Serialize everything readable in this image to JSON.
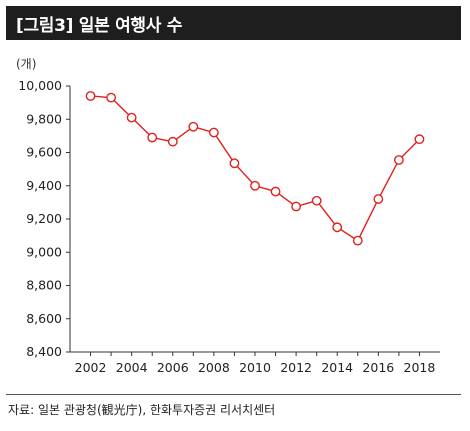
{
  "header": {
    "title": "[그림3]  일본 여행사 수"
  },
  "source": "자료: 일본 관광청(観光庁), 한화투자증권 리서치센터",
  "colors": {
    "header_bg": "#1e1e1e",
    "series": "#e0201b"
  },
  "chart_data": {
    "type": "line",
    "title": "[그림3]  일본 여행사 수",
    "unit": "(개)",
    "x": [
      2002,
      2003,
      2004,
      2005,
      2006,
      2007,
      2008,
      2009,
      2010,
      2011,
      2012,
      2013,
      2014,
      2015,
      2016,
      2017,
      2018
    ],
    "y": [
      9940,
      9930,
      9810,
      9690,
      9665,
      9755,
      9720,
      9535,
      9400,
      9365,
      9275,
      9310,
      9150,
      9070,
      9320,
      9555,
      9680
    ],
    "xticks": [
      "2002",
      "2004",
      "2006",
      "2008",
      "2010",
      "2012",
      "2014",
      "2016",
      "2018"
    ],
    "yticks": [
      "8,400",
      "8,600",
      "8,800",
      "9,000",
      "9,200",
      "9,400",
      "9,600",
      "9,800",
      "10,000"
    ],
    "ylim": [
      8400,
      10000
    ],
    "xlim": [
      2002,
      2018
    ],
    "grid": false,
    "legend": "none",
    "marker": "open-circle"
  }
}
